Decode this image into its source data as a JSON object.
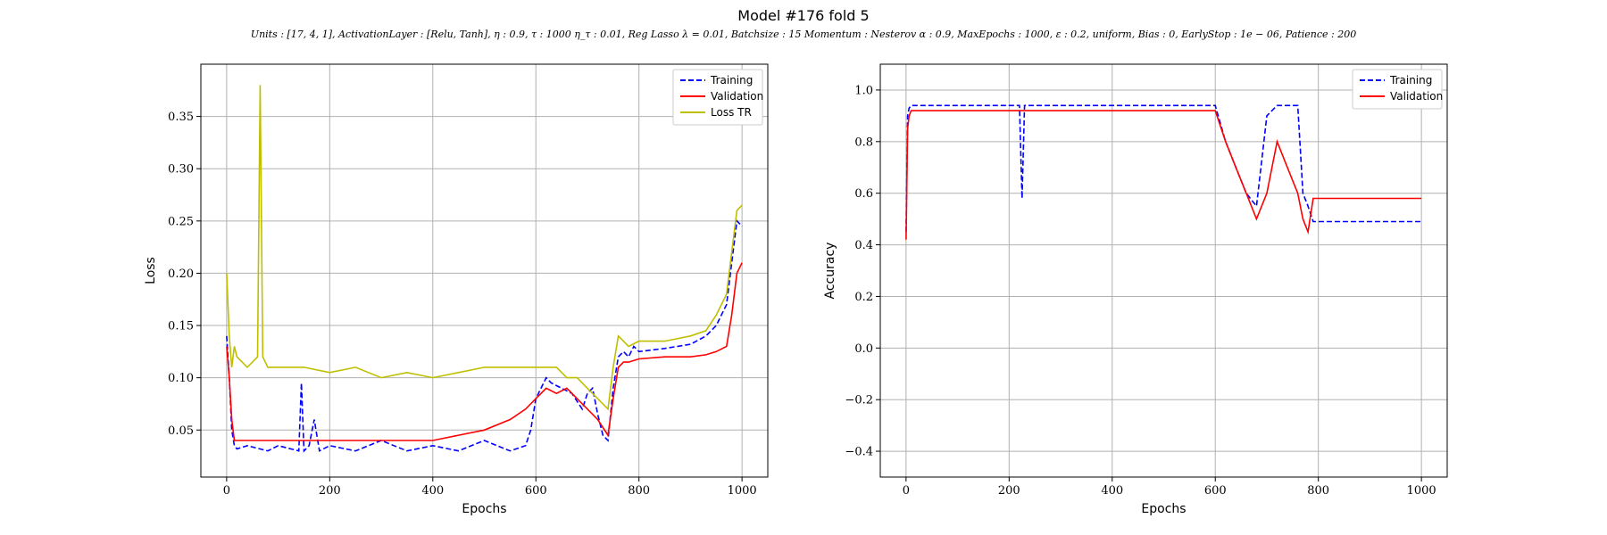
{
  "figure": {
    "title": "Model #176 fold 5",
    "subtitle": "Units : [17, 4, 1], ActivationLayer : [Relu, Tanh], η : 0.9, τ : 1000 η_τ : 0.01, Reg Lasso λ = 0.01, Batchsize : 15 Momentum : Nesterov α : 0.9, MaxEpochs : 1000, ε : 0.2, uniform, Bias : 0, EarlyStop : 1e − 06, Patience : 200"
  },
  "chart_data": [
    {
      "type": "line",
      "xlabel": "Epochs",
      "ylabel": "Loss",
      "xlim": [
        -50,
        1050
      ],
      "ylim": [
        0.005,
        0.4
      ],
      "xticks": [
        0,
        200,
        400,
        600,
        800,
        1000
      ],
      "yticks": [
        0.05,
        0.1,
        0.15,
        0.2,
        0.25,
        0.3,
        0.35
      ],
      "ytick_labels": [
        "0.05",
        "0.10",
        "0.15",
        "0.20",
        "0.25",
        "0.30",
        "0.35"
      ],
      "grid": true,
      "legend_position": "top-right",
      "series": [
        {
          "name": "Training",
          "color": "#0000ff",
          "style": "dashed",
          "x": [
            0,
            5,
            10,
            15,
            20,
            40,
            80,
            100,
            140,
            145,
            150,
            160,
            170,
            180,
            200,
            250,
            300,
            350,
            400,
            450,
            500,
            550,
            580,
            590,
            600,
            610,
            620,
            630,
            650,
            670,
            690,
            700,
            710,
            720,
            730,
            740,
            750,
            760,
            770,
            780,
            790,
            800,
            850,
            900,
            930,
            950,
            970,
            980,
            990,
            1000
          ],
          "y": [
            0.14,
            0.1,
            0.05,
            0.035,
            0.032,
            0.035,
            0.03,
            0.035,
            0.03,
            0.095,
            0.03,
            0.035,
            0.06,
            0.03,
            0.035,
            0.03,
            0.04,
            0.03,
            0.035,
            0.03,
            0.04,
            0.03,
            0.035,
            0.05,
            0.08,
            0.09,
            0.1,
            0.095,
            0.09,
            0.085,
            0.07,
            0.085,
            0.09,
            0.065,
            0.045,
            0.04,
            0.09,
            0.12,
            0.125,
            0.12,
            0.13,
            0.125,
            0.128,
            0.132,
            0.14,
            0.15,
            0.17,
            0.21,
            0.25,
            0.245
          ]
        },
        {
          "name": "Validation",
          "color": "#ff0000",
          "style": "solid",
          "x": [
            0,
            5,
            10,
            15,
            20,
            40,
            80,
            100,
            150,
            200,
            250,
            300,
            350,
            400,
            450,
            500,
            550,
            580,
            600,
            620,
            640,
            660,
            680,
            700,
            720,
            740,
            750,
            760,
            770,
            780,
            800,
            850,
            900,
            930,
            950,
            970,
            980,
            990,
            1000
          ],
          "y": [
            0.13,
            0.1,
            0.06,
            0.04,
            0.04,
            0.04,
            0.04,
            0.04,
            0.04,
            0.04,
            0.04,
            0.04,
            0.04,
            0.04,
            0.045,
            0.05,
            0.06,
            0.07,
            0.08,
            0.09,
            0.085,
            0.09,
            0.08,
            0.07,
            0.06,
            0.045,
            0.08,
            0.11,
            0.115,
            0.115,
            0.118,
            0.12,
            0.12,
            0.122,
            0.125,
            0.13,
            0.16,
            0.2,
            0.21
          ]
        },
        {
          "name": "Loss TR",
          "color": "#bfbf00",
          "style": "solid",
          "x": [
            0,
            5,
            10,
            15,
            20,
            40,
            60,
            65,
            70,
            80,
            100,
            150,
            200,
            250,
            300,
            350,
            400,
            450,
            500,
            550,
            580,
            600,
            620,
            640,
            660,
            680,
            700,
            720,
            740,
            750,
            760,
            770,
            780,
            800,
            850,
            900,
            930,
            950,
            970,
            980,
            990,
            1000
          ],
          "y": [
            0.2,
            0.14,
            0.11,
            0.13,
            0.12,
            0.11,
            0.12,
            0.38,
            0.12,
            0.11,
            0.11,
            0.11,
            0.105,
            0.11,
            0.1,
            0.105,
            0.1,
            0.105,
            0.11,
            0.11,
            0.11,
            0.11,
            0.11,
            0.11,
            0.1,
            0.1,
            0.09,
            0.08,
            0.07,
            0.11,
            0.14,
            0.135,
            0.13,
            0.135,
            0.135,
            0.14,
            0.145,
            0.16,
            0.18,
            0.22,
            0.26,
            0.265
          ]
        }
      ]
    },
    {
      "type": "line",
      "xlabel": "Epochs",
      "ylabel": "Accuracy",
      "xlim": [
        -50,
        1050
      ],
      "ylim": [
        -0.5,
        1.1
      ],
      "xticks": [
        0,
        200,
        400,
        600,
        800,
        1000
      ],
      "yticks": [
        -0.4,
        -0.2,
        0.0,
        0.2,
        0.4,
        0.6,
        0.8,
        1.0
      ],
      "ytick_labels": [
        "−0.4",
        "−0.2",
        "0.0",
        "0.2",
        "0.4",
        "0.6",
        "0.8",
        "1.0"
      ],
      "grid": true,
      "legend_position": "top-right",
      "series": [
        {
          "name": "Training",
          "color": "#0000ff",
          "style": "dashed",
          "x": [
            0,
            3,
            6,
            10,
            20,
            50,
            100,
            150,
            200,
            220,
            225,
            230,
            250,
            300,
            350,
            400,
            450,
            500,
            550,
            600,
            620,
            640,
            660,
            680,
            700,
            720,
            740,
            760,
            770,
            780,
            790,
            800,
            850,
            900,
            950,
            1000
          ],
          "y": [
            0.45,
            0.9,
            0.93,
            0.94,
            0.94,
            0.94,
            0.94,
            0.94,
            0.94,
            0.94,
            0.58,
            0.94,
            0.94,
            0.94,
            0.94,
            0.94,
            0.94,
            0.94,
            0.94,
            0.94,
            0.8,
            0.7,
            0.6,
            0.55,
            0.9,
            0.94,
            0.94,
            0.94,
            0.6,
            0.55,
            0.49,
            0.49,
            0.49,
            0.49,
            0.49,
            0.49
          ]
        },
        {
          "name": "Validation",
          "color": "#ff0000",
          "style": "solid",
          "x": [
            0,
            3,
            6,
            10,
            20,
            50,
            100,
            150,
            200,
            250,
            300,
            350,
            400,
            450,
            500,
            550,
            600,
            620,
            640,
            660,
            680,
            700,
            720,
            740,
            760,
            770,
            780,
            790,
            800,
            850,
            900,
            950,
            1000
          ],
          "y": [
            0.42,
            0.85,
            0.9,
            0.92,
            0.92,
            0.92,
            0.92,
            0.92,
            0.92,
            0.92,
            0.92,
            0.92,
            0.92,
            0.92,
            0.92,
            0.92,
            0.92,
            0.8,
            0.7,
            0.6,
            0.5,
            0.6,
            0.8,
            0.7,
            0.6,
            0.5,
            0.45,
            0.58,
            0.58,
            0.58,
            0.58,
            0.58,
            0.58
          ]
        }
      ]
    }
  ]
}
